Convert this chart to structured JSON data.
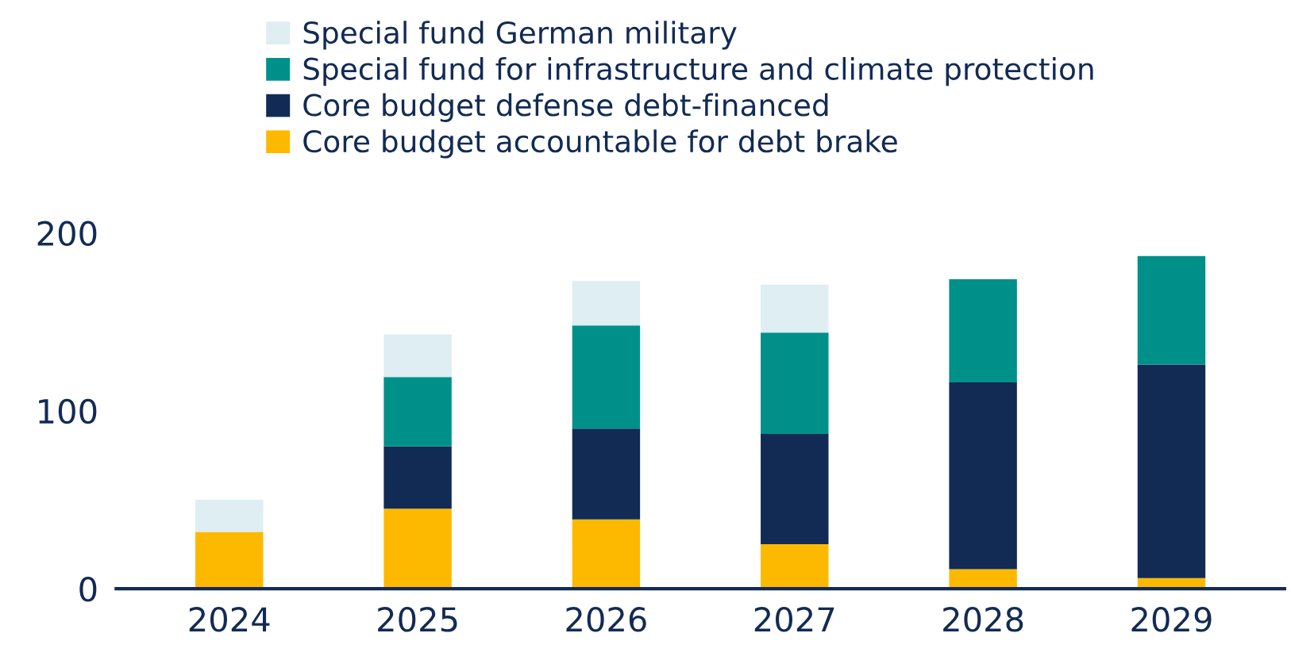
{
  "chart_data": {
    "type": "bar",
    "stacked": true,
    "categories": [
      "2024",
      "2025",
      "2026",
      "2027",
      "2028",
      "2029"
    ],
    "series": [
      {
        "name": "Core budget accountable for debt brake",
        "color": "#fdb900",
        "values": [
          32,
          45,
          39,
          25,
          11,
          6
        ]
      },
      {
        "name": "Core budget defense debt-financed",
        "color": "#122b54",
        "values": [
          0,
          35,
          51,
          62,
          105,
          120
        ]
      },
      {
        "name": "Special fund for infrastructure and climate protection",
        "color": "#00908a",
        "values": [
          0,
          39,
          58,
          57,
          58,
          61
        ]
      },
      {
        "name": "Special fund German military",
        "color": "#deeef2",
        "values": [
          18,
          24,
          25,
          27,
          0,
          0
        ]
      }
    ],
    "ylim": [
      0,
      200
    ],
    "yticks": [
      0,
      100,
      200
    ],
    "grid": false,
    "legend": "top left"
  }
}
